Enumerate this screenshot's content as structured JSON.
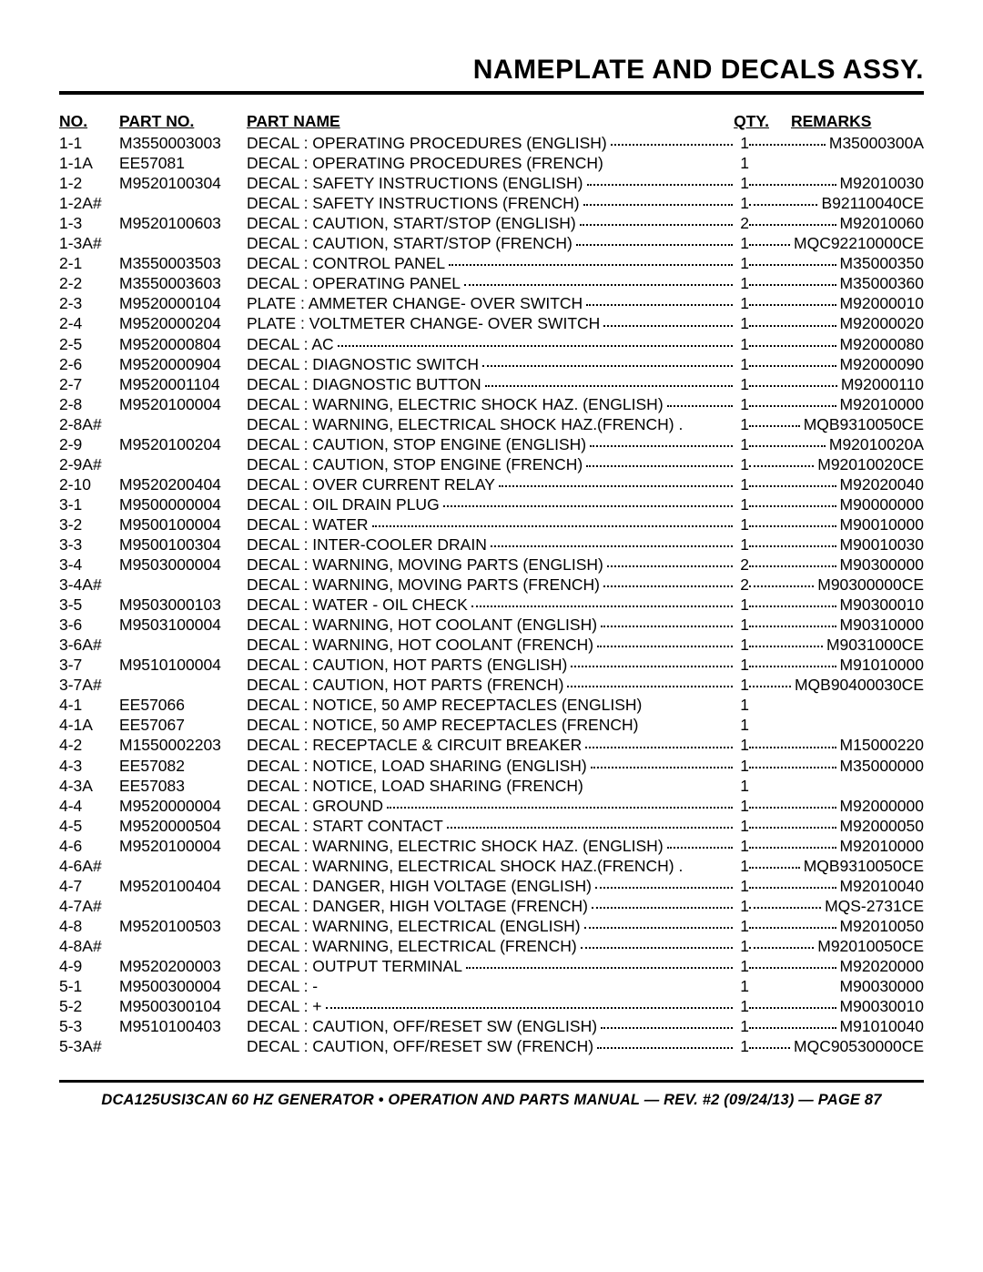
{
  "title": "NAMEPLATE AND DECALS ASSY.",
  "headers": {
    "no": "NO.",
    "part": "PART NO.",
    "name": "PART NAME",
    "qty": "QTY.",
    "remarks": "REMARKS"
  },
  "footer": "DCA125USI3CAN 60 HZ GENERATOR • OPERATION AND PARTS MANUAL — REV. #2 (09/24/13) — PAGE 87",
  "rows": [
    {
      "no": "1-1",
      "part": "M3550003003",
      "name": "DECAL : OPERATING PROCEDURES (ENGLISH)",
      "qty": "1",
      "remarks": "M35000300A",
      "dots": true,
      "rdots": true
    },
    {
      "no": "1-1A",
      "part": "EE57081",
      "name": "DECAL : OPERATING PROCEDURES (FRENCH)",
      "qty": "1",
      "remarks": "",
      "dots": false,
      "rdots": false
    },
    {
      "no": "1-2",
      "part": "M9520100304",
      "name": "DECAL : SAFETY INSTRUCTIONS (ENGLISH)",
      "qty": "1",
      "remarks": "M92010030",
      "dots": true,
      "rdots": true
    },
    {
      "no": "1-2A#",
      "part": "",
      "name": "DECAL : SAFETY INSTRUCTIONS (FRENCH)",
      "qty": "1",
      "remarks": "B92110040CE",
      "dots": true,
      "rdots": true
    },
    {
      "no": "1-3",
      "part": "M9520100603",
      "name": "DECAL : CAUTION, START/STOP (ENGLISH)",
      "qty": "2",
      "remarks": "M92010060",
      "dots": true,
      "rdots": true
    },
    {
      "no": "1-3A#",
      "part": "",
      "name": "DECAL : CAUTION, START/STOP (FRENCH)",
      "qty": "1",
      "remarks": "MQC92210000CE",
      "dots": true,
      "rdots": true
    },
    {
      "no": "2-1",
      "part": "M3550003503",
      "name": "DECAL : CONTROL PANEL",
      "qty": "1",
      "remarks": "M35000350",
      "dots": true,
      "rdots": true
    },
    {
      "no": "2-2",
      "part": "M3550003603",
      "name": "DECAL : OPERATING PANEL",
      "qty": "1",
      "remarks": "M35000360",
      "dots": true,
      "rdots": true
    },
    {
      "no": "2-3",
      "part": "M9520000104",
      "name": "PLATE : AMMETER CHANGE- OVER SWITCH",
      "qty": "1",
      "remarks": "M92000010",
      "dots": true,
      "rdots": true
    },
    {
      "no": "2-4",
      "part": "M9520000204",
      "name": "PLATE : VOLTMETER CHANGE- OVER SWITCH",
      "qty": "1",
      "remarks": "M92000020",
      "dots": true,
      "rdots": true
    },
    {
      "no": "2-5",
      "part": "M9520000804",
      "name": "DECAL : AC",
      "qty": "1",
      "remarks": "M92000080",
      "dots": true,
      "rdots": true
    },
    {
      "no": "2-6",
      "part": "M9520000904",
      "name": "DECAL : DIAGNOSTIC SWITCH",
      "qty": "1",
      "remarks": "M92000090",
      "dots": true,
      "rdots": true
    },
    {
      "no": "2-7",
      "part": "M9520001104",
      "name": "DECAL : DIAGNOSTIC BUTTON",
      "qty": "1",
      "remarks": "M92000110",
      "dots": true,
      "rdots": true
    },
    {
      "no": "2-8",
      "part": "M9520100004",
      "name": "DECAL : WARNING, ELECTRIC SHOCK HAZ. (ENGLISH)",
      "qty": "1",
      "remarks": "M92010000",
      "dots": true,
      "rdots": true
    },
    {
      "no": "2-8A#",
      "part": "",
      "name": "DECAL : WARNING, ELECTRICAL SHOCK HAZ.(FRENCH) .",
      "qty": "1",
      "remarks": "MQB9310050CE",
      "dots": false,
      "rdots": true
    },
    {
      "no": "2-9",
      "part": "M9520100204",
      "name": "DECAL : CAUTION, STOP ENGINE (ENGLISH)",
      "qty": "1",
      "remarks": "M92010020A",
      "dots": true,
      "rdots": true
    },
    {
      "no": "2-9A#",
      "part": "",
      "name": "DECAL : CAUTION, STOP ENGINE (FRENCH)",
      "qty": "1",
      "remarks": "M92010020CE",
      "dots": true,
      "rdots": true
    },
    {
      "no": "2-10",
      "part": "M9520200404",
      "name": "DECAL : OVER CURRENT RELAY",
      "qty": "1",
      "remarks": "M92020040",
      "dots": true,
      "rdots": true
    },
    {
      "no": "3-1",
      "part": "M9500000004",
      "name": "DECAL : OIL DRAIN PLUG",
      "qty": "1",
      "remarks": "M90000000",
      "dots": true,
      "rdots": true
    },
    {
      "no": "3-2",
      "part": "M9500100004",
      "name": "DECAL : WATER",
      "qty": "1",
      "remarks": "M90010000",
      "dots": true,
      "rdots": true
    },
    {
      "no": "3-3",
      "part": "M9500100304",
      "name": "DECAL : INTER-COOLER DRAIN",
      "qty": "1",
      "remarks": "M90010030",
      "dots": true,
      "rdots": true
    },
    {
      "no": "3-4",
      "part": "M9503000004",
      "name": "DECAL : WARNING, MOVING PARTS (ENGLISH)",
      "qty": "2",
      "remarks": "M90300000",
      "dots": true,
      "rdots": true
    },
    {
      "no": "3-4A#",
      "part": "",
      "name": "DECAL : WARNING, MOVING PARTS (FRENCH)",
      "qty": "2",
      "remarks": "M90300000CE",
      "dots": true,
      "rdots": true
    },
    {
      "no": "3-5",
      "part": "M9503000103",
      "name": "DECAL : WATER -  OIL CHECK",
      "qty": "1",
      "remarks": "M90300010",
      "dots": true,
      "rdots": true
    },
    {
      "no": "3-6",
      "part": "M9503100004",
      "name": "DECAL : WARNING, HOT COOLANT (ENGLISH)",
      "qty": "1",
      "remarks": "M90310000",
      "dots": true,
      "rdots": true
    },
    {
      "no": "3-6A#",
      "part": "",
      "name": "DECAL : WARNING, HOT COOLANT (FRENCH)",
      "qty": "1",
      "remarks": "M9031000CE",
      "dots": true,
      "rdots": true
    },
    {
      "no": "3-7",
      "part": "M9510100004",
      "name": "DECAL : CAUTION, HOT PARTS (ENGLISH)",
      "qty": "1",
      "remarks": "M91010000",
      "dots": true,
      "rdots": true
    },
    {
      "no": "3-7A#",
      "part": "",
      "name": "DECAL : CAUTION, HOT PARTS (FRENCH)",
      "qty": "1",
      "remarks": "MQB90400030CE",
      "dots": true,
      "rdots": true
    },
    {
      "no": "4-1",
      "part": "EE57066",
      "name": "DECAL : NOTICE, 50 AMP RECEPTACLES (ENGLISH)",
      "qty": "1",
      "remarks": "",
      "dots": false,
      "rdots": false
    },
    {
      "no": "4-1A",
      "part": "EE57067",
      "name": "DECAL : NOTICE, 50 AMP RECEPTACLES (FRENCH)",
      "qty": "1",
      "remarks": "",
      "dots": false,
      "rdots": false
    },
    {
      "no": "4-2",
      "part": "M1550002203",
      "name": "DECAL : RECEPTACLE & CIRCUIT BREAKER",
      "qty": "1",
      "remarks": "M15000220",
      "dots": true,
      "rdots": true
    },
    {
      "no": "4-3",
      "part": "EE57082",
      "name": "DECAL : NOTICE, LOAD SHARING (ENGLISH)",
      "qty": "1",
      "remarks": "M35000000",
      "dots": true,
      "rdots": true
    },
    {
      "no": "4-3A",
      "part": "EE57083",
      "name": "DECAL : NOTICE, LOAD SHARING (FRENCH)",
      "qty": "1",
      "remarks": "",
      "dots": false,
      "rdots": false
    },
    {
      "no": "4-4",
      "part": "M9520000004",
      "name": "DECAL : GROUND",
      "qty": "1",
      "remarks": "M92000000",
      "dots": true,
      "rdots": true
    },
    {
      "no": "4-5",
      "part": "M9520000504",
      "name": "DECAL : START CONTACT",
      "qty": "1",
      "remarks": "M92000050",
      "dots": true,
      "rdots": true
    },
    {
      "no": "4-6",
      "part": "M9520100004",
      "name": "DECAL : WARNING, ELECTRIC SHOCK HAZ. (ENGLISH)",
      "qty": "1",
      "remarks": "M92010000",
      "dots": true,
      "rdots": true
    },
    {
      "no": "4-6A#",
      "part": "",
      "name": "DECAL : WARNING, ELECTRICAL SHOCK HAZ.(FRENCH) .",
      "qty": "1",
      "remarks": "MQB9310050CE",
      "dots": false,
      "rdots": true
    },
    {
      "no": "4-7",
      "part": "M9520100404",
      "name": "DECAL : DANGER, HIGH VOLTAGE (ENGLISH)",
      "qty": "1",
      "remarks": "M92010040",
      "dots": true,
      "rdots": true
    },
    {
      "no": "4-7A#",
      "part": "",
      "name": "DECAL : DANGER, HIGH VOLTAGE (FRENCH)",
      "qty": "1",
      "remarks": "MQS-2731CE",
      "dots": true,
      "rdots": true
    },
    {
      "no": "4-8",
      "part": "M9520100503",
      "name": "DECAL : WARNING, ELECTRICAL (ENGLISH)",
      "qty": "1",
      "remarks": "M92010050",
      "dots": true,
      "rdots": true
    },
    {
      "no": "4-8A#",
      "part": "",
      "name": "DECAL : WARNING, ELECTRICAL (FRENCH)",
      "qty": "1",
      "remarks": "M92010050CE",
      "dots": true,
      "rdots": true
    },
    {
      "no": "4-9",
      "part": "M9520200003",
      "name": "DECAL : OUTPUT TERMINAL",
      "qty": "1",
      "remarks": "M92020000",
      "dots": true,
      "rdots": true
    },
    {
      "no": "5-1",
      "part": "M9500300004",
      "name": "DECAL : -",
      "qty": "1",
      "remarks": "M90030000",
      "dots": false,
      "rdots": false
    },
    {
      "no": "5-2",
      "part": "M9500300104",
      "name": "DECAL : +",
      "qty": "1",
      "remarks": "M90030010",
      "dots": true,
      "rdots": true
    },
    {
      "no": "5-3",
      "part": "M9510100403",
      "name": "DECAL : CAUTION, OFF/RESET SW (ENGLISH)",
      "qty": "1",
      "remarks": "M91010040",
      "dots": true,
      "rdots": true
    },
    {
      "no": "5-3A#",
      "part": "",
      "name": "DECAL : CAUTION, OFF/RESET SW (FRENCH)",
      "qty": "1",
      "remarks": "MQC90530000CE",
      "dots": true,
      "rdots": true
    }
  ]
}
